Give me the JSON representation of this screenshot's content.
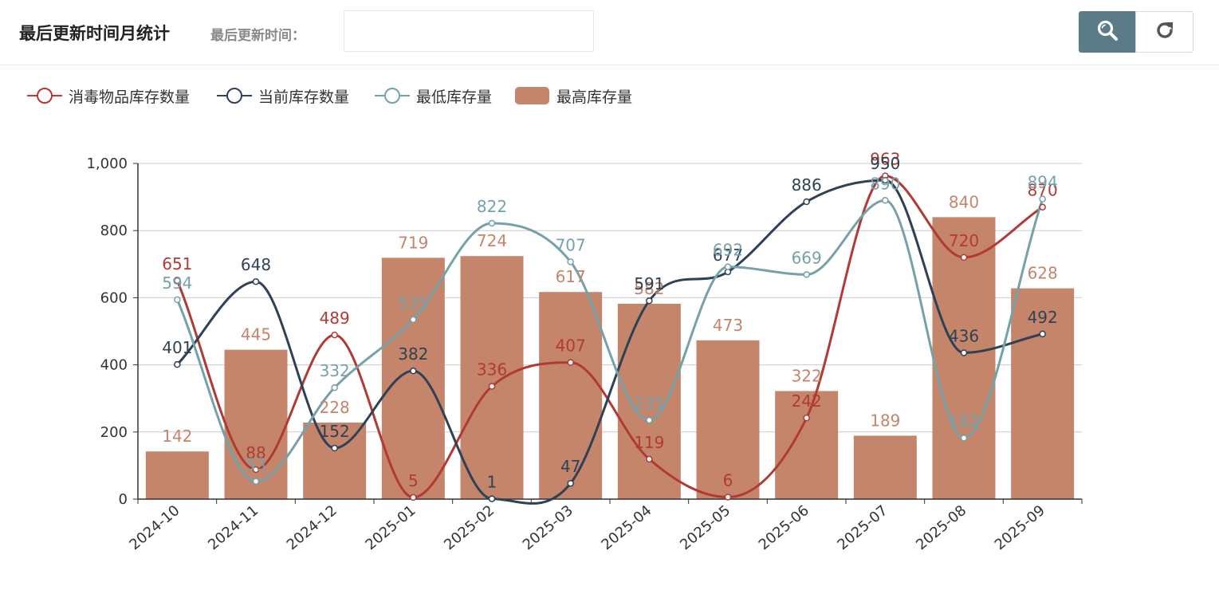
{
  "header": {
    "title": "最后更新时间月统计",
    "filter_label": "最后更新时间：",
    "filter_value": ""
  },
  "toolbar": {
    "search_icon": "search-icon",
    "reset_icon": "refresh-icon"
  },
  "colors": {
    "disinfect": "#b13a34",
    "current": "#2f4154",
    "min": "#75a1a9",
    "max": "#c4856a",
    "search_button": "#5b7b88"
  },
  "chart_data": {
    "type": "bar",
    "categories": [
      "2024-10",
      "2024-11",
      "2024-12",
      "2025-01",
      "2025-02",
      "2025-03",
      "2025-04",
      "2025-05",
      "2025-06",
      "2025-07",
      "2025-08",
      "2025-09"
    ],
    "series": [
      {
        "name": "消毒物品库存数量",
        "type": "line",
        "smooth": true,
        "values": [
          651,
          88,
          489,
          5,
          336,
          407,
          119,
          6,
          242,
          963,
          720,
          870
        ]
      },
      {
        "name": "当前库存数量",
        "type": "line",
        "smooth": true,
        "values": [
          401,
          648,
          152,
          382,
          1,
          47,
          591,
          677,
          886,
          950,
          436,
          492
        ]
      },
      {
        "name": "最低库存量",
        "type": "line",
        "smooth": true,
        "values": [
          594,
          53,
          332,
          535,
          822,
          707,
          235,
          692,
          669,
          890,
          182,
          894
        ]
      },
      {
        "name": "最高库存量",
        "type": "bar",
        "values": [
          142,
          445,
          228,
          719,
          724,
          617,
          582,
          473,
          322,
          189,
          840,
          628
        ]
      }
    ],
    "ylim": [
      0,
      1000
    ],
    "yticks": [
      0,
      200,
      400,
      600,
      800,
      1000
    ],
    "ytick_labels": [
      "0",
      "200",
      "400",
      "600",
      "800",
      "1,000"
    ],
    "xlabel": "",
    "ylabel": "",
    "grid": true,
    "legend_position": "top-left",
    "data_labels": true
  }
}
